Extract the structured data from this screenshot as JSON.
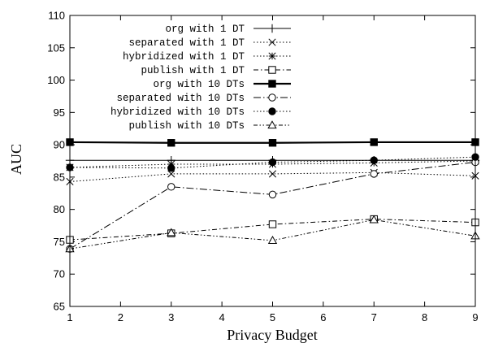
{
  "chart_data": {
    "type": "line",
    "xlabel": "Privacy Budget",
    "ylabel": "AUC",
    "xlim": [
      1,
      9
    ],
    "ylim": [
      65,
      110
    ],
    "xticks": [
      1,
      2,
      3,
      4,
      5,
      6,
      7,
      8,
      9
    ],
    "yticks": [
      65,
      70,
      75,
      80,
      85,
      90,
      95,
      100,
      105,
      110
    ],
    "legend_position": "top-right",
    "grid": false,
    "x": [
      1,
      3,
      5,
      7,
      9
    ],
    "series": [
      {
        "name": "org with 1 DT",
        "values": [
          87.6,
          87.6,
          87.6,
          87.6,
          87.6
        ],
        "marker": "plus",
        "dash": "solid",
        "width": 1
      },
      {
        "name": "separated with 1 DT",
        "values": [
          84.3,
          85.5,
          85.5,
          85.7,
          85.2
        ],
        "marker": "cross",
        "dash": "dot",
        "width": 1
      },
      {
        "name": "hybridized with 1 DT",
        "values": [
          86.5,
          87.0,
          87.0,
          87.2,
          87.5
        ],
        "marker": "star",
        "dash": "dot",
        "width": 1
      },
      {
        "name": "publish with 1 DT",
        "values": [
          75.3,
          76.3,
          77.7,
          78.5,
          78.0
        ],
        "marker": "open-square",
        "dash": "dashdot",
        "width": 1
      },
      {
        "name": "org with 10 DTs",
        "values": [
          90.4,
          90.3,
          90.3,
          90.4,
          90.4
        ],
        "marker": "filled-square",
        "dash": "solid",
        "width": 2.2
      },
      {
        "name": "separated with 10 DTs",
        "values": [
          73.9,
          83.5,
          82.3,
          85.5,
          87.3
        ],
        "marker": "open-circle",
        "dash": "longdashdot",
        "width": 1
      },
      {
        "name": "hybridized with 10 DTs",
        "values": [
          86.5,
          86.4,
          87.3,
          87.6,
          88.1
        ],
        "marker": "filled-circle",
        "dash": "dot",
        "width": 1
      },
      {
        "name": "publish with 10 DTs",
        "values": [
          73.9,
          76.4,
          75.2,
          78.4,
          75.9
        ],
        "marker": "open-triangle",
        "dash": "dashdotdot",
        "width": 1
      }
    ]
  }
}
